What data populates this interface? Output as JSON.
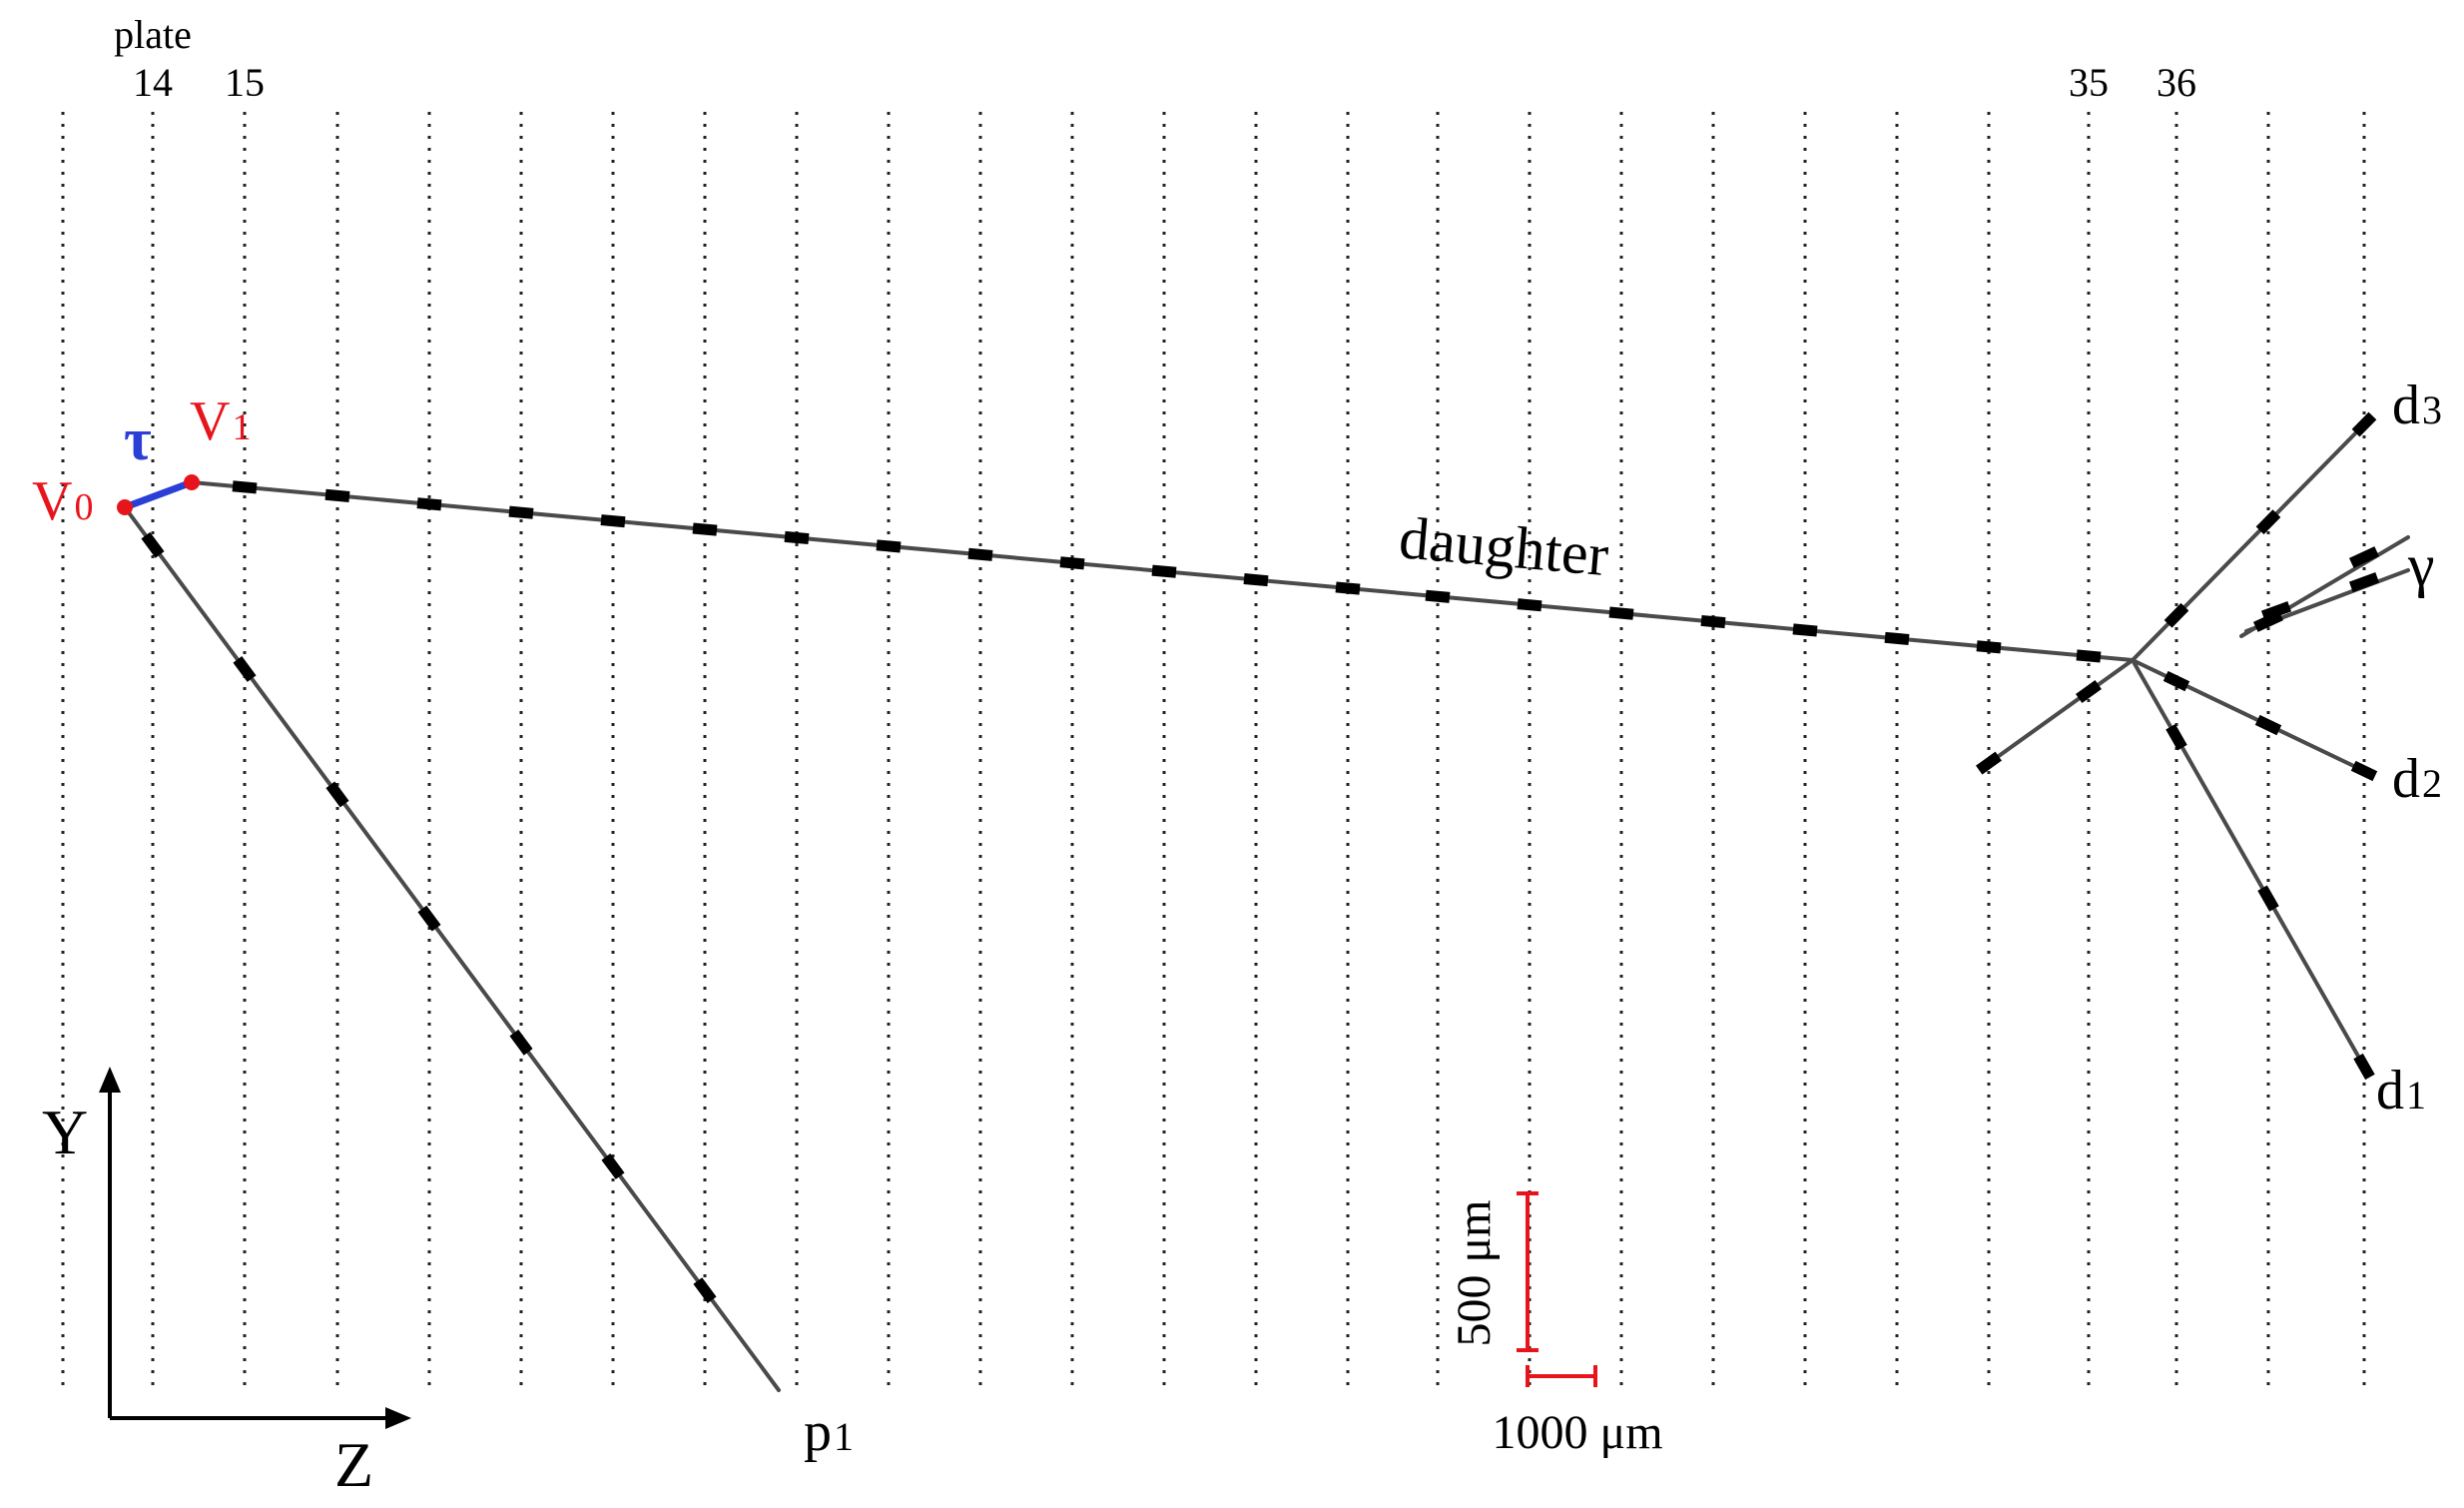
{
  "header": {
    "plate_label": "plate"
  },
  "plates": [
    "14",
    "15",
    "35",
    "36"
  ],
  "vertices": {
    "v0": "V",
    "v0_sub": "0",
    "v1": "V",
    "v1_sub": "1"
  },
  "tau_label": "τ",
  "tracks": {
    "daughter": "daughter",
    "p1": "p",
    "p1_sub": "1",
    "d1": "d",
    "d1_sub": "1",
    "d2": "d",
    "d2_sub": "2",
    "d3": "d",
    "d3_sub": "3",
    "gamma": "γ"
  },
  "axes": {
    "y": "Y",
    "z": "Z"
  },
  "scale_bars": {
    "vertical": "500 μm",
    "horizontal": "1000 μm"
  },
  "colors": {
    "vertex": "#e8141c",
    "tau": "#2b3fd6",
    "track": "#4a4a4a",
    "segment": "#000000",
    "scale": "#e8141c"
  }
}
